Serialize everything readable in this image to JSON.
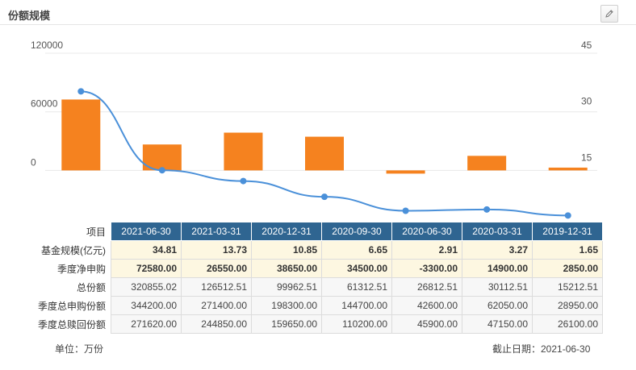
{
  "header": {
    "title": "份额规模",
    "edit_icon": "pencil-icon"
  },
  "chart_data": {
    "type": "bar",
    "categories": [
      "2021-06-30",
      "2021-03-31",
      "2020-12-31",
      "2020-09-30",
      "2020-06-30",
      "2020-03-31",
      "2019-12-31"
    ],
    "series": [
      {
        "name": "季度净申购",
        "type": "bar",
        "axis": "left",
        "color": "#f5821f",
        "values": [
          72580,
          26550,
          38650,
          34500,
          -3300,
          14900,
          2850
        ]
      },
      {
        "name": "基金规模(亿元)",
        "type": "line",
        "axis": "right",
        "color": "#4a90d9",
        "values": [
          34.81,
          13.73,
          10.85,
          6.65,
          2.91,
          3.27,
          1.65
        ]
      }
    ],
    "left_axis": {
      "ticks": [
        "120000",
        "60000",
        "0"
      ],
      "tick_values": [
        120000,
        60000,
        0
      ],
      "range": [
        -52500,
        120000
      ]
    },
    "right_axis": {
      "ticks": [
        "45",
        "30",
        "15"
      ],
      "tick_values": [
        45,
        30,
        15
      ],
      "range": [
        0,
        45
      ]
    },
    "grid": true,
    "title": "",
    "xlabel": "",
    "ylabel": ""
  },
  "table": {
    "corner": "项目",
    "columns": [
      "2021-06-30",
      "2021-03-31",
      "2020-12-31",
      "2020-09-30",
      "2020-06-30",
      "2020-03-31",
      "2019-12-31"
    ],
    "rows": [
      {
        "label": "基金规模(亿元)",
        "highlight": true,
        "cells": [
          "34.81",
          "13.73",
          "10.85",
          "6.65",
          "2.91",
          "3.27",
          "1.65"
        ]
      },
      {
        "label": "季度净申购",
        "highlight": true,
        "cells": [
          "72580.00",
          "26550.00",
          "38650.00",
          "34500.00",
          "-3300.00",
          "14900.00",
          "2850.00"
        ]
      },
      {
        "label": "总份额",
        "highlight": false,
        "cells": [
          "320855.02",
          "126512.51",
          "99962.51",
          "61312.51",
          "26812.51",
          "30112.51",
          "15212.51"
        ]
      },
      {
        "label": "季度总申购份额",
        "highlight": false,
        "cells": [
          "344200.00",
          "271400.00",
          "198300.00",
          "144700.00",
          "42600.00",
          "62050.00",
          "28950.00"
        ]
      },
      {
        "label": "季度总赎回份额",
        "highlight": false,
        "cells": [
          "271620.00",
          "244850.00",
          "159650.00",
          "110200.00",
          "45900.00",
          "47150.00",
          "26100.00"
        ]
      }
    ]
  },
  "footer": {
    "unit": "单位：万份",
    "cutoff": "截止日期：2021-06-30"
  }
}
